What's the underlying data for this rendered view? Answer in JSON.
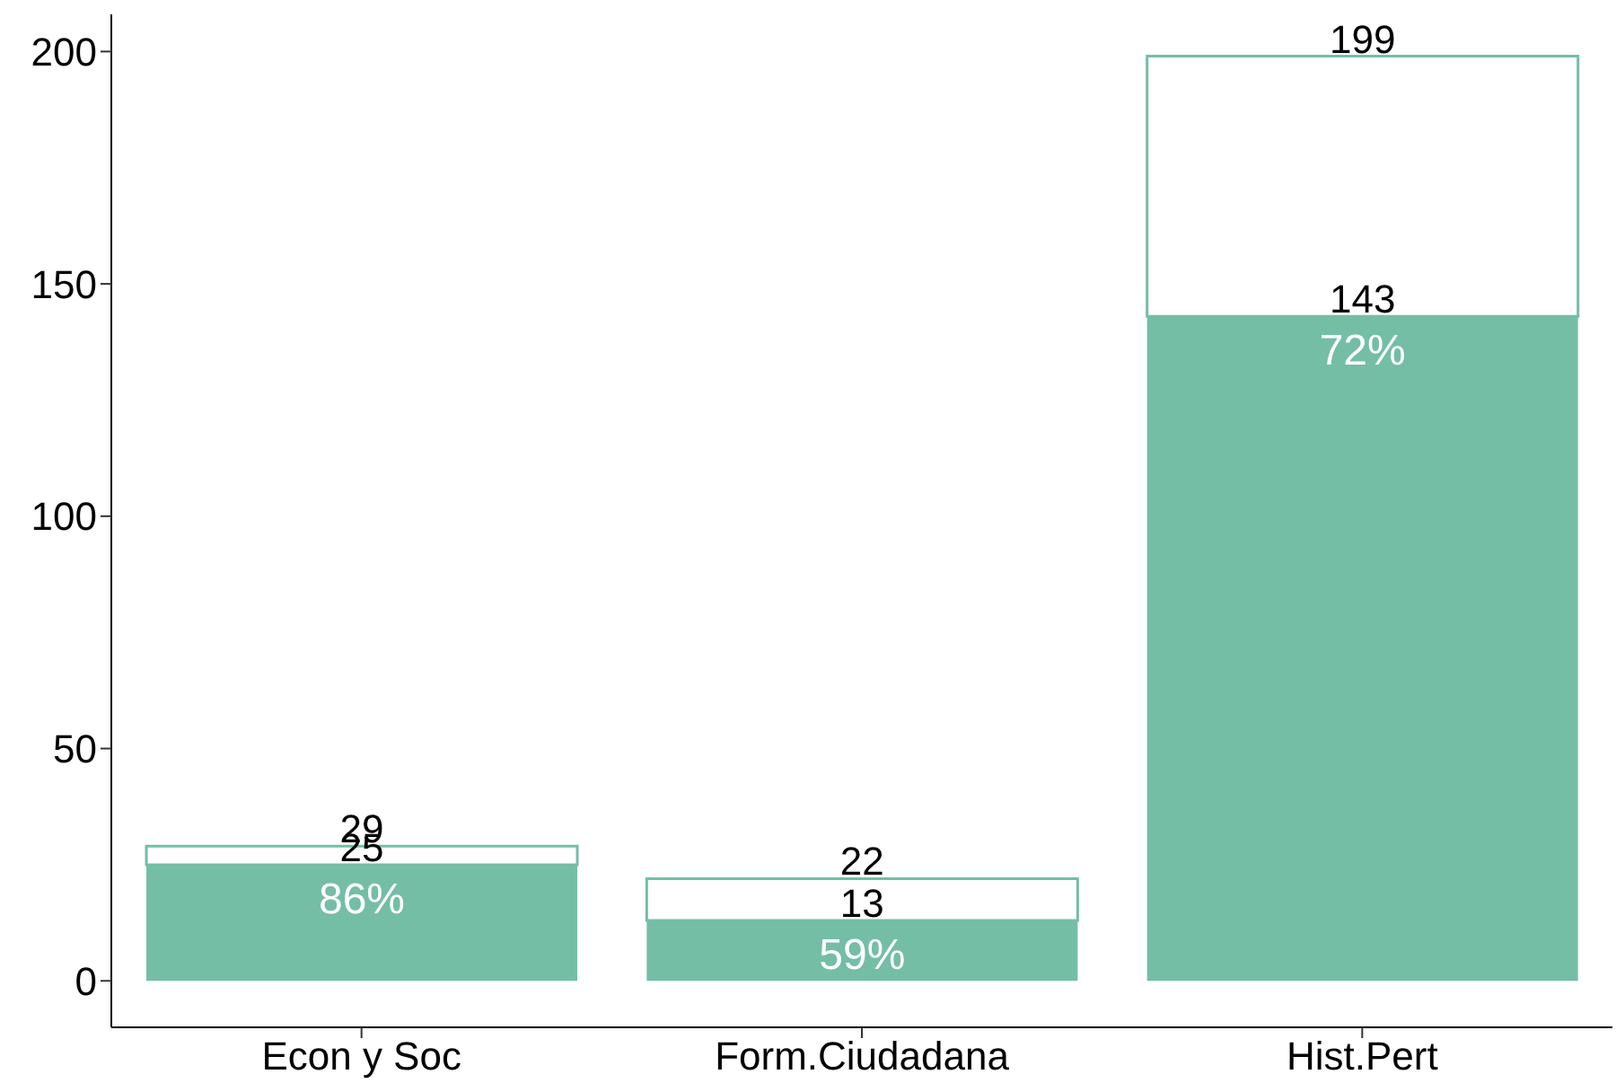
{
  "chart_data": {
    "type": "bar",
    "categories": [
      "Econ y Soc",
      "Form.Ciudadana",
      "Hist.Pert"
    ],
    "stacked": true,
    "series": [
      {
        "color": "#74bea5",
        "values": [
          25,
          13,
          143
        ],
        "value_labels": [
          "25",
          "13",
          "143"
        ]
      },
      {
        "color": "#74bea5",
        "values": [
          4,
          9,
          56
        ]
      }
    ],
    "totals": [
      "29",
      "22",
      "199"
    ],
    "annotations": [
      "86%",
      "59%",
      "72%"
    ],
    "ylim": [
      -10,
      208
    ],
    "yticks": [
      0,
      50,
      100,
      150,
      200
    ],
    "grid": false,
    "legend": false
  }
}
